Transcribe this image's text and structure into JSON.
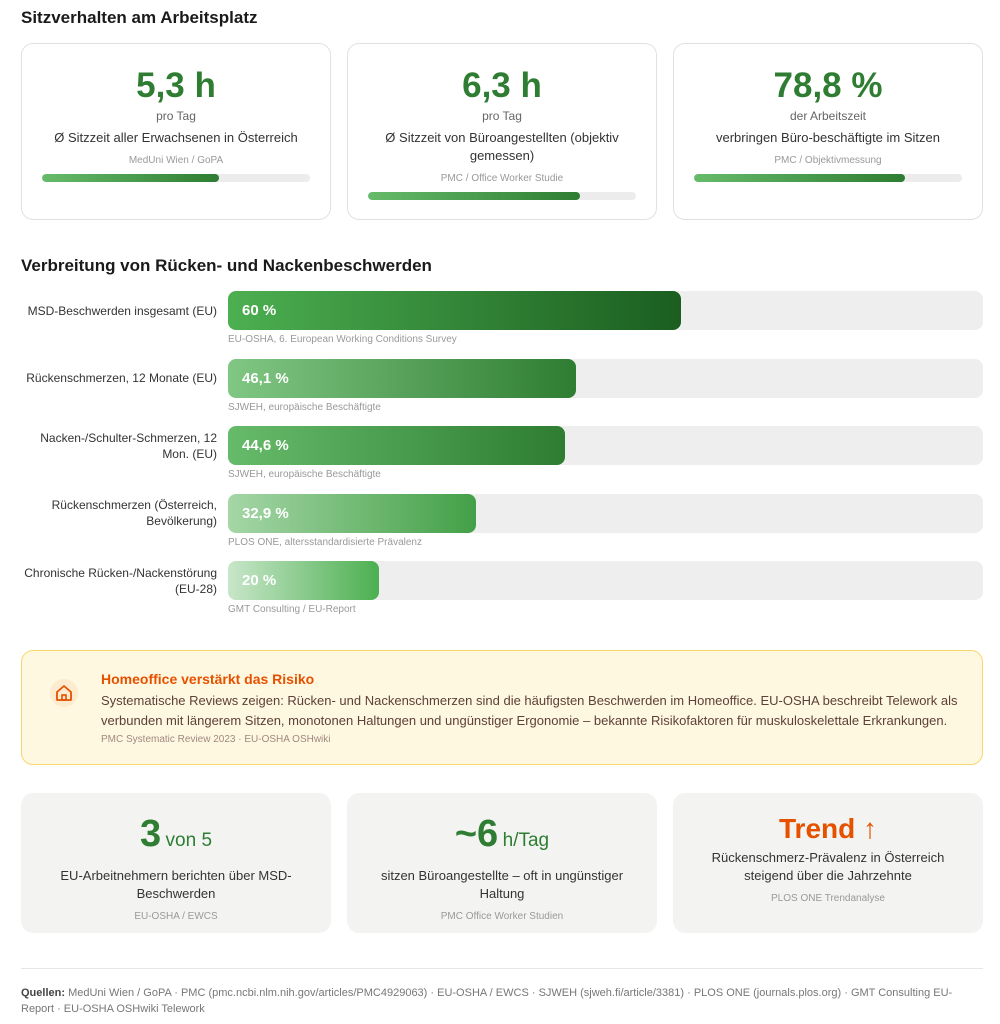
{
  "sections": {
    "sitting_title": "Sitzverhalten am Arbeitsplatz",
    "complaints_title": "Verbreitung von Rücken- und Nackenbeschwerden"
  },
  "stat_cards": [
    {
      "value": "5,3 h",
      "unit": "pro Tag",
      "description": "Ø Sitzzeit aller Erwachsenen in Österreich",
      "source": "MedUni Wien / GoPA",
      "progress": 0.66
    },
    {
      "value": "6,3 h",
      "unit": "pro Tag",
      "description": "Ø Sitzzeit von Büroangestellten (objektiv gemessen)",
      "source": "PMC / Office Worker Studie",
      "progress": 0.79
    },
    {
      "value": "78,8 %",
      "unit": "der Arbeitszeit",
      "description": "verbringen Büro-beschäftigte im Sitzen",
      "source": "PMC / Objektivmessung",
      "progress": 0.788
    }
  ],
  "chart_data": {
    "type": "bar",
    "orientation": "horizontal",
    "xlim": [
      0,
      100
    ],
    "categories": [
      "MSD-Beschwerden insgesamt (EU)",
      "Rückenschmerzen, 12 Monate (EU)",
      "Nacken-/Schulter-Schmerzen, 12 Mon. (EU)",
      "Rückenschmerzen (Österreich, Bevölkerung)",
      "Chronische Rücken-/Nackenstörung (EU-28)"
    ],
    "values": [
      60,
      46.1,
      44.6,
      32.9,
      20
    ],
    "value_labels": [
      "60 %",
      "46,1 %",
      "44,6 %",
      "32,9 %",
      "20 %"
    ],
    "sources": [
      "EU-OSHA, 6. European Working Conditions Survey",
      "SJWEH, europäische Beschäftigte",
      "SJWEH, europäische Beschäftigte",
      "PLOS ONE, altersstandardisierte Prävalenz",
      "GMT Consulting / EU-Report"
    ],
    "colors": [
      [
        "#4caf50",
        "#1b5e20"
      ],
      [
        "#81c784",
        "#2e7d32"
      ],
      [
        "#66bb6a",
        "#2e7d32"
      ],
      [
        "#a5d6a7",
        "#43a047"
      ],
      [
        "#c8e6c9",
        "#4caf50"
      ]
    ]
  },
  "alert": {
    "icon": "home-icon",
    "title": "Homeoffice verstärkt das Risiko",
    "text": "Systematische Reviews zeigen: Rücken- und Nackenschmerzen sind die häufigsten Beschwerden im Homeoffice. EU-OSHA beschreibt Telework als verbunden mit längerem Sitzen, monotonen Haltungen und ungünstiger Ergonomie – bekannte Risikofaktoren für muskuloskelettale Erkrankungen.",
    "source": "PMC Systematic Review 2023 · EU-OSHA OSHwiki"
  },
  "info_cards": [
    {
      "number": "3",
      "suffix": "von 5",
      "description": "EU-Arbeitnehmern berichten über MSD-Beschwerden",
      "source": "EU-OSHA / EWCS"
    },
    {
      "number": "~6",
      "suffix": "h/Tag",
      "description": "sitzen Büroangestellte – oft in ungünstiger Haltung",
      "source": "PMC Office Worker Studien"
    },
    {
      "trend": "Trend ↑",
      "description": "Rückenschmerz-Prävalenz in Österreich steigend über die Jahrzehnte",
      "source": "PLOS ONE Trendanalyse"
    }
  ],
  "footer": {
    "label": "Quellen:",
    "text": "MedUni Wien / GoPA · PMC (pmc.ncbi.nlm.nih.gov/articles/PMC4929063) · EU-OSHA / EWCS · SJWEH (sjweh.fi/article/3381) · PLOS ONE (journals.plos.org) · GMT Consulting EU-Report · EU-OSHA OSHwiki Telework"
  }
}
